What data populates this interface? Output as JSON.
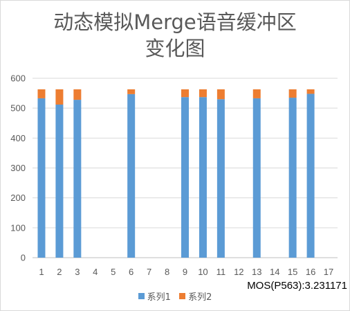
{
  "chart_data": {
    "type": "bar",
    "stacked": true,
    "title_line1": "动态模拟Merge语音缓冲区",
    "title_line2": "变化图",
    "xlabel": "",
    "ylabel": "",
    "categories": [
      "1",
      "2",
      "3",
      "4",
      "5",
      "6",
      "7",
      "8",
      "9",
      "10",
      "11",
      "12",
      "13",
      "14",
      "15",
      "16",
      "17"
    ],
    "ylim": [
      0,
      600
    ],
    "yticks": [
      0,
      100,
      200,
      300,
      400,
      500,
      600
    ],
    "grid": true,
    "legend_position": "bottom",
    "series": [
      {
        "name": "系列1",
        "color": "#5b9bd5",
        "values": [
          533,
          512,
          528,
          0,
          0,
          547,
          0,
          0,
          537,
          537,
          530,
          0,
          533,
          0,
          535,
          548,
          0
        ]
      },
      {
        "name": "系列2",
        "color": "#ed7d31",
        "values": [
          30,
          51,
          35,
          0,
          0,
          16,
          0,
          0,
          26,
          26,
          33,
          0,
          30,
          0,
          28,
          15,
          0
        ]
      }
    ],
    "annotation": "MOS(P563):3.231171"
  }
}
